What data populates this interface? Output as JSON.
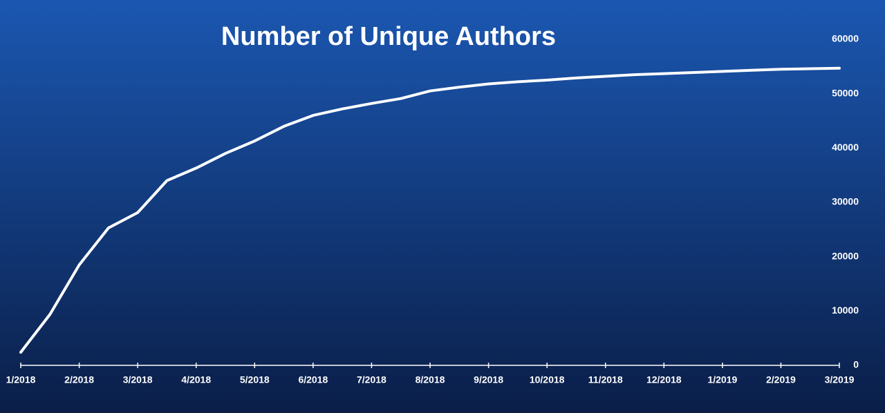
{
  "chart_data": {
    "type": "line",
    "title": "Number of Unique Authors",
    "categories": [
      "1/2018",
      null,
      "2/2018",
      null,
      "3/2018",
      null,
      "4/2018",
      null,
      "5/2018",
      null,
      "6/2018",
      null,
      "7/2018",
      null,
      "8/2018",
      null,
      "9/2018",
      null,
      "10/2018",
      null,
      "11/2018",
      null,
      "12/2018",
      null,
      "1/2019",
      null,
      "2/2019",
      null,
      "3/2019"
    ],
    "series": [
      {
        "name": "Unique Authors",
        "color": "#ffffff",
        "values": [
          2400,
          9400,
          18500,
          25300,
          28100,
          34000,
          36300,
          39000,
          41300,
          44000,
          46000,
          47200,
          48200,
          49100,
          50500,
          51200,
          51800,
          52200,
          52500,
          52900,
          53200,
          53500,
          53700,
          53900,
          54100,
          54300,
          54500,
          54600,
          54700
        ]
      }
    ],
    "ylim": [
      0,
      60000
    ],
    "yticks": [
      0,
      10000,
      20000,
      30000,
      40000,
      50000,
      60000
    ],
    "y_axis_side": "right",
    "grid": false
  }
}
